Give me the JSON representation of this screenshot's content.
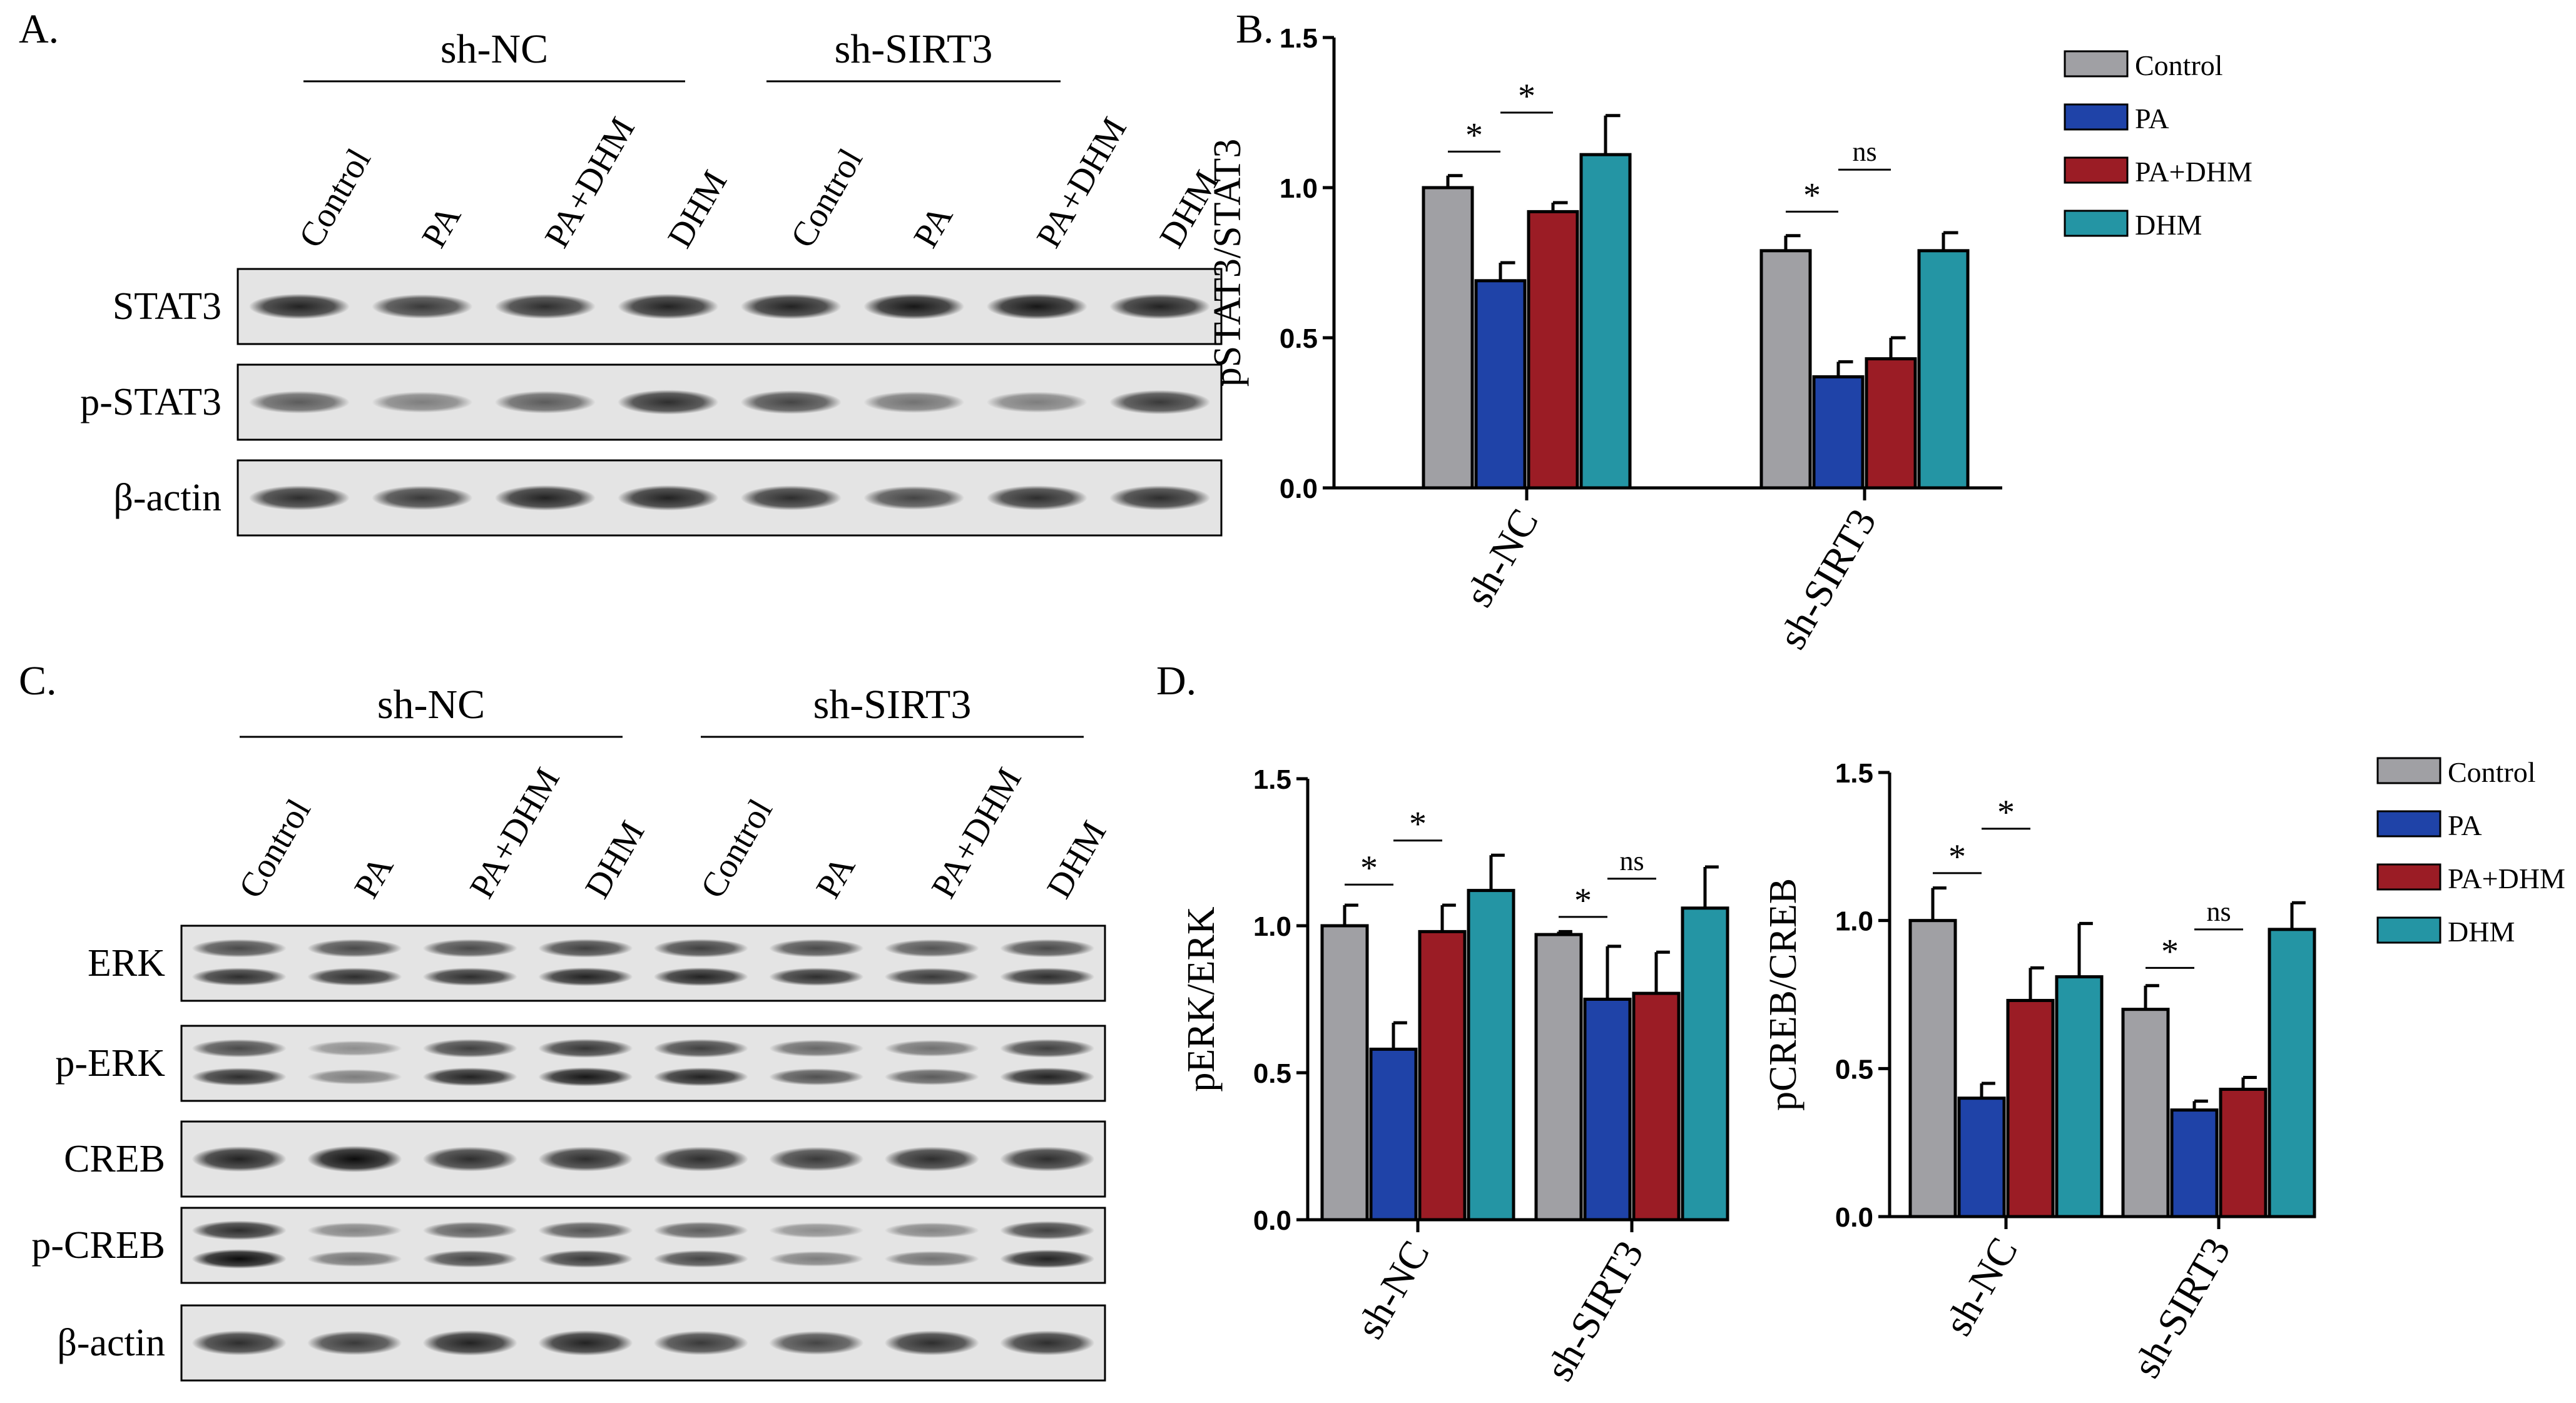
{
  "panel_letters": {
    "a": "A.",
    "b": "B.",
    "c": "C.",
    "d": "D."
  },
  "blot_A": {
    "groups": [
      "sh-NC",
      "sh-SIRT3"
    ],
    "lanes": [
      "Control",
      "PA",
      "PA+DHM",
      "DHM",
      "Control",
      "PA",
      "PA+DHM",
      "DHM"
    ],
    "rows": [
      {
        "label": "STAT3",
        "bands": [
          0.85,
          0.75,
          0.8,
          0.85,
          0.85,
          0.9,
          0.9,
          0.85
        ]
      },
      {
        "label": "p-STAT3",
        "bands": [
          0.6,
          0.45,
          0.6,
          0.8,
          0.7,
          0.5,
          0.45,
          0.75
        ]
      },
      {
        "label": "β-actin",
        "bands": [
          0.8,
          0.75,
          0.85,
          0.85,
          0.8,
          0.7,
          0.8,
          0.8
        ]
      }
    ]
  },
  "blot_C": {
    "groups": [
      "sh-NC",
      "sh-SIRT3"
    ],
    "lanes": [
      "Control",
      "PA",
      "PA+DHM",
      "DHM",
      "Control",
      "PA",
      "PA+DHM",
      "DHM"
    ],
    "rows": [
      {
        "label": "ERK",
        "bands": [
          0.8,
          0.8,
          0.8,
          0.85,
          0.85,
          0.8,
          0.75,
          0.8
        ],
        "double": true
      },
      {
        "label": "p-ERK",
        "bands": [
          0.8,
          0.45,
          0.85,
          0.9,
          0.85,
          0.65,
          0.6,
          0.85
        ],
        "double": true
      },
      {
        "label": "CREB",
        "bands": [
          0.85,
          0.95,
          0.8,
          0.8,
          0.8,
          0.75,
          0.8,
          0.8
        ]
      },
      {
        "label": "p-CREB",
        "bands": [
          0.95,
          0.5,
          0.7,
          0.75,
          0.7,
          0.45,
          0.5,
          0.85
        ],
        "double": true
      },
      {
        "label": "β-actin",
        "bands": [
          0.8,
          0.75,
          0.85,
          0.85,
          0.75,
          0.7,
          0.8,
          0.8
        ]
      }
    ]
  },
  "legend": {
    "entries": [
      "Control",
      "PA",
      "PA+DHM",
      "DHM"
    ],
    "colors": [
      "#a0a0a4",
      "#1f43a8",
      "#9b1c25",
      "#2495a4"
    ]
  },
  "chart_data": [
    {
      "panel": "B",
      "type": "bar",
      "ylabel": "pSTAT3/STAT3",
      "ylim": [
        0,
        1.5
      ],
      "yticks": [
        "0.0",
        "0.5",
        "1.0",
        "1.5"
      ],
      "categories": [
        "sh-NC",
        "sh-SIRT3"
      ],
      "series": [
        {
          "name": "Control",
          "values": [
            1.0,
            0.79
          ],
          "errors": [
            0.04,
            0.05
          ]
        },
        {
          "name": "PA",
          "values": [
            0.69,
            0.37
          ],
          "errors": [
            0.06,
            0.05
          ]
        },
        {
          "name": "PA+DHM",
          "values": [
            0.92,
            0.43
          ],
          "errors": [
            0.03,
            0.07
          ]
        },
        {
          "name": "DHM",
          "values": [
            1.11,
            0.79
          ],
          "errors": [
            0.13,
            0.06
          ]
        }
      ],
      "annotations": [
        {
          "text": "*",
          "group": 0,
          "from": 0,
          "to": 1,
          "level": 1.12
        },
        {
          "text": "*",
          "group": 0,
          "from": 1,
          "to": 2,
          "level": 1.25
        },
        {
          "text": "*",
          "group": 1,
          "from": 0,
          "to": 1,
          "level": 0.92
        },
        {
          "text": "ns",
          "group": 1,
          "from": 1,
          "to": 2,
          "level": 1.06
        }
      ]
    },
    {
      "panel": "D-left",
      "type": "bar",
      "ylabel": "pERK/ERK",
      "ylim": [
        0,
        1.5
      ],
      "yticks": [
        "0.0",
        "0.5",
        "1.0",
        "1.5"
      ],
      "categories": [
        "sh-NC",
        "sh-SIRT3"
      ],
      "series": [
        {
          "name": "Control",
          "values": [
            1.0,
            0.97
          ],
          "errors": [
            0.07,
            0.01
          ]
        },
        {
          "name": "PA",
          "values": [
            0.58,
            0.75
          ],
          "errors": [
            0.09,
            0.18
          ]
        },
        {
          "name": "PA+DHM",
          "values": [
            0.98,
            0.77
          ],
          "errors": [
            0.09,
            0.14
          ]
        },
        {
          "name": "DHM",
          "values": [
            1.12,
            1.06
          ],
          "errors": [
            0.12,
            0.14
          ]
        }
      ],
      "annotations": [
        {
          "text": "*",
          "group": 0,
          "from": 0,
          "to": 1,
          "level": 1.14
        },
        {
          "text": "*",
          "group": 0,
          "from": 1,
          "to": 2,
          "level": 1.29
        },
        {
          "text": "*",
          "group": 1,
          "from": 0,
          "to": 1,
          "level": 1.03
        },
        {
          "text": "ns",
          "group": 1,
          "from": 1,
          "to": 2,
          "level": 1.16
        }
      ]
    },
    {
      "panel": "D-right",
      "type": "bar",
      "ylabel": "pCREB/CREB",
      "ylim": [
        0,
        1.5
      ],
      "yticks": [
        "0.0",
        "0.5",
        "1.0",
        "1.5"
      ],
      "categories": [
        "sh-NC",
        "sh-SIRT3"
      ],
      "series": [
        {
          "name": "Control",
          "values": [
            1.0,
            0.7
          ],
          "errors": [
            0.11,
            0.08
          ]
        },
        {
          "name": "PA",
          "values": [
            0.4,
            0.36
          ],
          "errors": [
            0.05,
            0.03
          ]
        },
        {
          "name": "PA+DHM",
          "values": [
            0.73,
            0.43
          ],
          "errors": [
            0.11,
            0.04
          ]
        },
        {
          "name": "DHM",
          "values": [
            0.81,
            0.97
          ],
          "errors": [
            0.18,
            0.09
          ]
        }
      ],
      "annotations": [
        {
          "text": "*",
          "group": 0,
          "from": 0,
          "to": 1,
          "level": 1.16
        },
        {
          "text": "*",
          "group": 0,
          "from": 1,
          "to": 2,
          "level": 1.31
        },
        {
          "text": "*",
          "group": 1,
          "from": 0,
          "to": 1,
          "level": 0.84
        },
        {
          "text": "ns",
          "group": 1,
          "from": 1,
          "to": 2,
          "level": 0.97
        }
      ]
    }
  ]
}
